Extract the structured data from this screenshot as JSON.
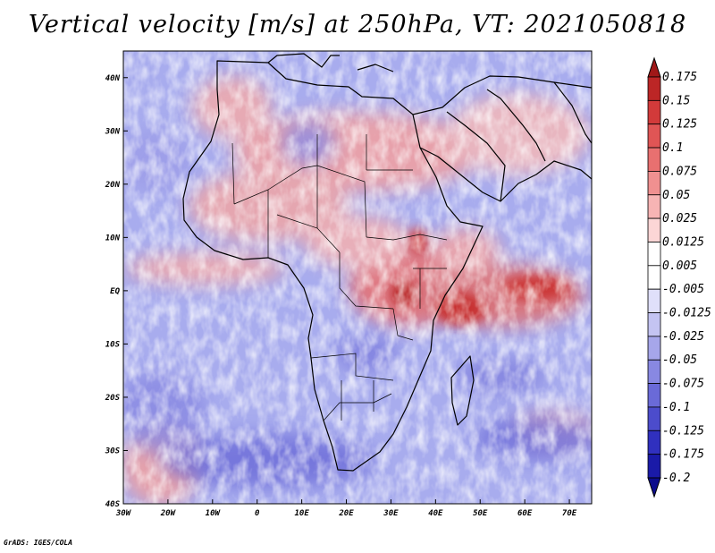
{
  "title": "Vertical velocity [m/s] at 250hPa, VT: 2021050818",
  "credit": "GrADS: IGES/COLA",
  "map": {
    "lon_range": [
      -30,
      75
    ],
    "lat_range": [
      -40,
      45
    ],
    "x_ticks": [
      "30W",
      "20W",
      "10W",
      "0",
      "10E",
      "20E",
      "30E",
      "40E",
      "50E",
      "60E",
      "70E"
    ],
    "x_tick_lons": [
      -30,
      -20,
      -10,
      0,
      10,
      20,
      30,
      40,
      50,
      60,
      70
    ],
    "y_ticks": [
      "40N",
      "30N",
      "20N",
      "10N",
      "EQ",
      "10S",
      "20S",
      "30S",
      "40S"
    ],
    "y_tick_lats": [
      40,
      30,
      20,
      10,
      0,
      -10,
      -20,
      -30,
      -40
    ],
    "land_color": "#000000"
  },
  "colorbar": {
    "labels": [
      "0.175",
      "0.15",
      "0.125",
      "0.1",
      "0.075",
      "0.05",
      "0.025",
      "0.0125",
      "0.005",
      "-0.005",
      "-0.0125",
      "-0.025",
      "-0.05",
      "-0.075",
      "-0.1",
      "-0.125",
      "-0.175",
      "-0.2"
    ],
    "colors": [
      "#a01818",
      "#bc2626",
      "#d23a3a",
      "#e05555",
      "#e87070",
      "#f09090",
      "#f7b4b4",
      "#fcd6d6",
      "#ffffff",
      "#ffffff",
      "#e0e0fa",
      "#c4c4f2",
      "#a6a6ea",
      "#8888e2",
      "#6a6ad8",
      "#4c4ccc",
      "#3030bf",
      "#1a1aa8",
      "#0c0c8c"
    ]
  }
}
